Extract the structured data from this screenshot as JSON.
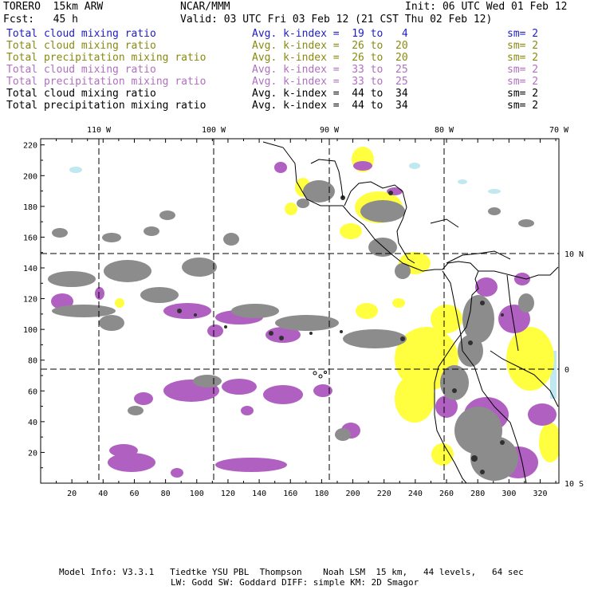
{
  "header": {
    "model": "TORERO  15km ARW",
    "center": "NCAR/MMM",
    "init": "Init: 06 UTC Wed 01 Feb 12",
    "fcst": "Fcst:   45 h",
    "valid": "Valid: 03 UTC Fri 03 Feb 12 (21 CST Thu 02 Feb 12)"
  },
  "legend": [
    {
      "field": "Total cloud mixing ratio",
      "kindex": "Avg. k-index =  19 to   4",
      "sm": "sm= 2",
      "color": "#2020c0"
    },
    {
      "field": "Total cloud mixing ratio",
      "kindex": "Avg. k-index =  26 to  20",
      "sm": "sm= 2",
      "color": "#8a8a10"
    },
    {
      "field": "Total precipitation mixing ratio",
      "kindex": "Avg. k-index =  26 to  20",
      "sm": "sm= 2",
      "color": "#8a8a10"
    },
    {
      "field": "Total cloud mixing ratio",
      "kindex": "Avg. k-index =  33 to  25",
      "sm": "sm= 2",
      "color": "#b070c0"
    },
    {
      "field": "Total precipitation mixing ratio",
      "kindex": "Avg. k-index =  33 to  25",
      "sm": "sm= 2",
      "color": "#b070c0"
    },
    {
      "field": "Total cloud mixing ratio",
      "kindex": "Avg. k-index =  44 to  34",
      "sm": "sm= 2",
      "color": "#000000"
    },
    {
      "field": "Total precipitation mixing ratio",
      "kindex": "Avg. k-index =  44 to  34",
      "sm": "sm= 2",
      "color": "#000000"
    }
  ],
  "map": {
    "lon_labels": [
      "110 W",
      "100 W",
      "90 W",
      "80 W",
      "70 W"
    ],
    "lat_labels": [
      "10 N",
      "0",
      "10 S"
    ],
    "grid_x_labels": [
      "20",
      "40",
      "60",
      "80",
      "100",
      "120",
      "140",
      "160",
      "180",
      "200",
      "220",
      "240",
      "260",
      "280",
      "300",
      "320"
    ],
    "grid_y_labels": [
      "20",
      "40",
      "60",
      "80",
      "100",
      "120",
      "140",
      "160",
      "180",
      "200",
      "220"
    ],
    "colors": {
      "purple": "#b060c0",
      "yellow": "#ffff40",
      "gray": "#8c8c8c",
      "dark": "#303030",
      "cyan": "#c0e8f0"
    }
  },
  "footer": {
    "line1": "Model Info: V3.3.1   Tiedtke YSU PBL  Thompson    Noah LSM  15 km,   44 levels,   64 sec",
    "line2": "LW: Godd SW: Goddard DIFF: simple KM: 2D Smagor"
  }
}
